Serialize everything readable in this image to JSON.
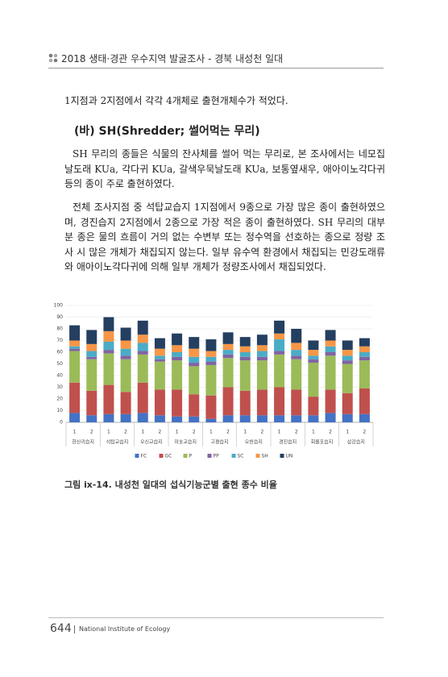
{
  "header": {
    "title": "2018 생태·경관 우수지역 발굴조사 - 경북 내성천 일대"
  },
  "intro": "1지점과 2지점에서 각각 4개체로 출현개체수가 적었다.",
  "heading": "(바) SH(Shredder; 썰어먹는 무리)",
  "paragraphs": [
    "SH 무리의 종들은 식물의 잔사체를 썰어 먹는 무리로, 본 조사에서는 네모집날도래 KUa, 각다귀 KUa, 갈색우묵날도래 KUa, 보통옆새우, 애아이노각다귀 등의 종이 주로 출현하였다.",
    "전체 조사지점 중 석탑교습지 1지점에서 9종으로 가장 많은 종이 출현하였으며, 경진습지 2지점에서 2종으로 가장 적은 종이 출현하였다. SH 무리의 대부분 종은 물의 흐름이 거의 없는 수변부 또는 정수역을 선호하는 종으로 정량 조사 시 많은 개체가 채집되지 않는다. 일부 유수역 환경에서 채집되는 민강도래류와 애아이노각다귀에 의해 일부 개체가 정량조사에서 채집되었다."
  ],
  "chart_data": {
    "type": "stacked-bar",
    "categories": [
      "1",
      "2",
      "1",
      "2",
      "1",
      "2",
      "1",
      "2",
      "1",
      "2",
      "1",
      "2",
      "1",
      "2",
      "1",
      "2",
      "1",
      "2"
    ],
    "groups": [
      "한산리습지",
      "석탑교습지",
      "오신교습지",
      "미호교습지",
      "고평습지",
      "오천습지",
      "경진습지",
      "회룡포습지",
      "삼강습지"
    ],
    "ylim": [
      0,
      100
    ],
    "yticks": [
      0,
      10,
      20,
      30,
      40,
      50,
      60,
      70,
      80,
      90,
      100
    ],
    "grid": true,
    "legend": "bottom",
    "series": [
      {
        "name": "FC",
        "color": "#4472c4",
        "values": [
          8,
          6,
          7,
          7,
          8,
          6,
          5,
          5,
          3,
          6,
          6,
          6,
          6,
          6,
          6,
          8,
          7,
          7
        ]
      },
      {
        "name": "GC",
        "color": "#c0504d",
        "values": [
          26,
          21,
          25,
          19,
          26,
          22,
          23,
          19,
          20,
          24,
          21,
          22,
          24,
          22,
          16,
          20,
          18,
          22
        ]
      },
      {
        "name": "P",
        "color": "#9bbb59",
        "values": [
          27,
          27,
          27,
          28,
          24,
          24,
          25,
          24,
          26,
          25,
          26,
          25,
          28,
          26,
          29,
          29,
          25,
          24
        ]
      },
      {
        "name": "PP",
        "color": "#8064a2",
        "values": [
          2,
          2,
          3,
          3,
          3,
          2,
          3,
          3,
          3,
          3,
          3,
          3,
          3,
          3,
          3,
          3,
          3,
          3
        ]
      },
      {
        "name": "SC",
        "color": "#4bacc6",
        "values": [
          2,
          5,
          7,
          6,
          7,
          3,
          4,
          5,
          4,
          4,
          4,
          5,
          10,
          5,
          3,
          5,
          4,
          4
        ]
      },
      {
        "name": "SH",
        "color": "#f79646",
        "values": [
          5,
          6,
          9,
          7,
          7,
          6,
          6,
          7,
          5,
          5,
          5,
          5,
          5,
          6,
          5,
          5,
          5,
          5
        ]
      },
      {
        "name": "UN",
        "color": "#243f60",
        "values": [
          13,
          12,
          12,
          11,
          12,
          9,
          10,
          10,
          10,
          10,
          8,
          9,
          11,
          12,
          8,
          9,
          8,
          7
        ]
      }
    ]
  },
  "caption": "그림 ⅸ-14. 내성천 일대의 섭식기능군별 출현 종수 비율",
  "footer": {
    "page": "644",
    "org": "National Institute of Ecology"
  }
}
